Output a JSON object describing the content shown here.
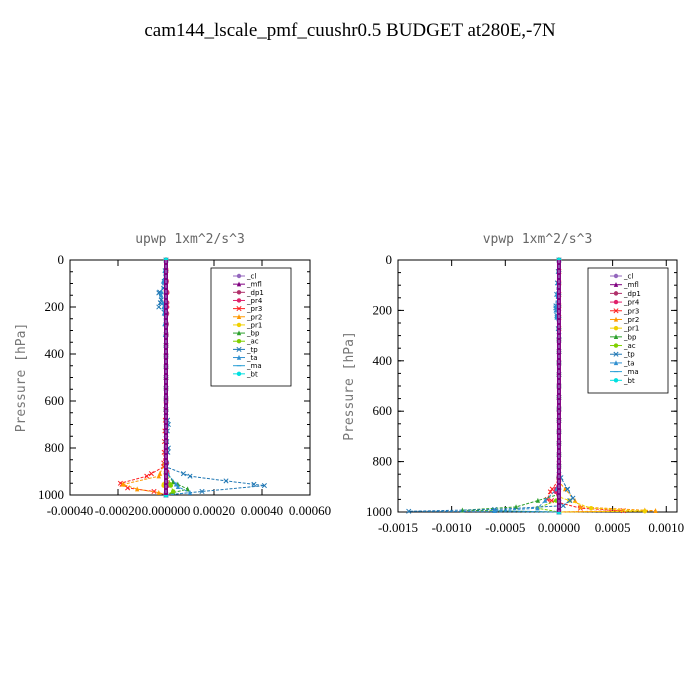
{
  "page": {
    "title": "cam144_lscale_pmf_cuushr0.5  BUDGET at280E,-7N"
  },
  "chart_data": [
    {
      "type": "line",
      "title": "upwp   1xm^2/s^3",
      "ylabel": "Pressure [hPa]",
      "xlabel": "",
      "xlim": [
        -0.0004,
        0.0006
      ],
      "ylim": [
        1000,
        0
      ],
      "xticks": [
        "-0.00040",
        "-0.00020",
        "0.000000",
        "0.00020",
        "0.00040",
        "0.00060"
      ],
      "xtick_values": [
        -0.0004,
        -0.0002,
        0,
        0.0002,
        0.0004,
        0.0006
      ],
      "yticks": [
        "0",
        "200",
        "400",
        "600",
        "800",
        "1000"
      ],
      "ytick_values": [
        0,
        200,
        400,
        600,
        800,
        1000
      ],
      "legend_position": "top-right",
      "series": [
        {
          "name": "_cl",
          "color": "#9467bd",
          "marker": "circle",
          "values": [
            [
              0,
              0
            ],
            [
              0,
              200
            ],
            [
              0,
              400
            ],
            [
              0,
              600
            ],
            [
              0,
              800
            ],
            [
              0,
              1000
            ]
          ]
        },
        {
          "name": "_mfl",
          "color": "#800080",
          "marker": "triangle",
          "values": [
            [
              0,
              0
            ],
            [
              0,
              200
            ],
            [
              0,
              400
            ],
            [
              0,
              600
            ],
            [
              0,
              800
            ],
            [
              0,
              1000
            ]
          ]
        },
        {
          "name": "_dp1",
          "color": "#b0306a",
          "marker": "circle",
          "values": [
            [
              0,
              0
            ],
            [
              0,
              200
            ],
            [
              0,
              400
            ],
            [
              0,
              600
            ],
            [
              0,
              800
            ],
            [
              0,
              1000
            ]
          ]
        },
        {
          "name": "_pr4",
          "color": "#e0206a",
          "marker": "circle",
          "values": [
            [
              0,
              0
            ],
            [
              5e-06,
              140
            ],
            [
              5e-06,
              200
            ],
            [
              0,
              400
            ],
            [
              0,
              700
            ],
            [
              5e-06,
              900
            ],
            [
              1e-05,
              960
            ],
            [
              0,
              1000
            ]
          ]
        },
        {
          "name": "_pr3",
          "color": "#ff2020",
          "marker": "x",
          "values": [
            [
              0,
              0
            ],
            [
              0,
              600
            ],
            [
              -1e-05,
              880
            ],
            [
              -8e-05,
              920
            ],
            [
              -0.00019,
              950
            ],
            [
              -0.00016,
              970
            ],
            [
              -5e-05,
              985
            ],
            [
              0,
              1000
            ]
          ]
        },
        {
          "name": "_pr2",
          "color": "#ff9900",
          "marker": "triangle",
          "values": [
            [
              0,
              0
            ],
            [
              0,
              850
            ],
            [
              -3e-05,
              920
            ],
            [
              -0.00018,
              955
            ],
            [
              -0.00012,
              975
            ],
            [
              -3e-05,
              990
            ],
            [
              0,
              1000
            ]
          ]
        },
        {
          "name": "_pr1",
          "color": "#f0d000",
          "marker": "circle",
          "values": [
            [
              0,
              0
            ],
            [
              0,
              900
            ],
            [
              -1e-05,
              960
            ],
            [
              0,
              1000
            ]
          ]
        },
        {
          "name": "_bp",
          "color": "#2ca02c",
          "marker": "triangle",
          "values": [
            [
              0,
              0
            ],
            [
              0,
              900
            ],
            [
              3e-05,
              945
            ],
            [
              9e-05,
              975
            ],
            [
              3e-05,
              990
            ],
            [
              0,
              1000
            ]
          ]
        },
        {
          "name": "_ac",
          "color": "#7fd000",
          "marker": "circle",
          "values": [
            [
              0,
              0
            ],
            [
              0,
              900
            ],
            [
              2e-05,
              960
            ],
            [
              3e-05,
              985
            ],
            [
              0,
              1000
            ]
          ]
        },
        {
          "name": "_tp",
          "color": "#1f77b4",
          "marker": "x",
          "values": [
            [
              0,
              0
            ],
            [
              -1e-05,
              120
            ],
            [
              -3e-05,
              140
            ],
            [
              -2e-05,
              170
            ],
            [
              -3e-05,
              200
            ],
            [
              0,
              230
            ],
            [
              0,
              650
            ],
            [
              1e-05,
              700
            ],
            [
              0,
              760
            ],
            [
              1e-05,
              800
            ],
            [
              0,
              880
            ],
            [
              0.0001,
              920
            ],
            [
              0.00025,
              940
            ],
            [
              0.00041,
              960
            ],
            [
              0.00015,
              985
            ],
            [
              0,
              1000
            ]
          ]
        },
        {
          "name": "_ta",
          "color": "#3090d0",
          "marker": "triangle",
          "values": [
            [
              0,
              0
            ],
            [
              -2e-05,
              150
            ],
            [
              -1e-05,
              200
            ],
            [
              0,
              400
            ],
            [
              0,
              900
            ],
            [
              5e-05,
              965
            ],
            [
              0.0001,
              990
            ],
            [
              0,
              1000
            ]
          ]
        },
        {
          "name": "_ma",
          "color": "#2a9fd6",
          "marker": "dash",
          "values": [
            [
              0,
              0
            ],
            [
              0,
              1000
            ]
          ]
        },
        {
          "name": "_bt",
          "color": "#00e0e0",
          "marker": "circle",
          "values": [
            [
              0,
              0
            ],
            [
              0,
              1000
            ]
          ]
        }
      ]
    },
    {
      "type": "line",
      "title": "vpwp   1xm^2/s^3",
      "ylabel": "Pressure [hPa]",
      "xlabel": "",
      "xlim": [
        -0.0015,
        0.0011
      ],
      "ylim": [
        1000,
        0
      ],
      "xticks": [
        "-0.0015",
        "-0.0010",
        "-0.0005",
        "0.00000",
        "0.0005",
        "0.0010"
      ],
      "xtick_values": [
        -0.0015,
        -0.001,
        -0.0005,
        0,
        0.0005,
        0.001
      ],
      "yticks": [
        "0",
        "200",
        "400",
        "600",
        "800",
        "1000"
      ],
      "ytick_values": [
        0,
        200,
        400,
        600,
        800,
        1000
      ],
      "legend_position": "top-right",
      "series": [
        {
          "name": "_cl",
          "color": "#9467bd",
          "marker": "circle",
          "values": [
            [
              0,
              0
            ],
            [
              0,
              200
            ],
            [
              0,
              400
            ],
            [
              0,
              600
            ],
            [
              0,
              800
            ],
            [
              0,
              1000
            ]
          ]
        },
        {
          "name": "_mfl",
          "color": "#800080",
          "marker": "triangle",
          "values": [
            [
              0,
              0
            ],
            [
              0,
              200
            ],
            [
              0,
              400
            ],
            [
              0,
              600
            ],
            [
              0,
              800
            ],
            [
              0,
              1000
            ]
          ]
        },
        {
          "name": "_dp1",
          "color": "#b0306a",
          "marker": "circle",
          "values": [
            [
              0,
              0
            ],
            [
              0,
              200
            ],
            [
              0,
              400
            ],
            [
              0,
              600
            ],
            [
              0,
              800
            ],
            [
              0,
              1000
            ]
          ]
        },
        {
          "name": "_pr4",
          "color": "#e0206a",
          "marker": "circle",
          "values": [
            [
              0,
              0
            ],
            [
              0,
              850
            ],
            [
              -3e-05,
              920
            ],
            [
              0,
              960
            ],
            [
              0,
              1000
            ]
          ]
        },
        {
          "name": "_pr3",
          "color": "#ff2020",
          "marker": "x",
          "values": [
            [
              0,
              0
            ],
            [
              0,
              870
            ],
            [
              -8e-05,
              920
            ],
            [
              -0.00011,
              950
            ],
            [
              0.0002,
              985
            ],
            [
              0.0006,
              995
            ],
            [
              0,
              1000
            ]
          ]
        },
        {
          "name": "_pr2",
          "color": "#ff9900",
          "marker": "triangle",
          "values": [
            [
              0,
              0
            ],
            [
              0,
              880
            ],
            [
              0.0002,
              980
            ],
            [
              0.0008,
              993
            ],
            [
              0.0009,
              995
            ],
            [
              0,
              1000
            ]
          ]
        },
        {
          "name": "_pr1",
          "color": "#f0d000",
          "marker": "circle",
          "values": [
            [
              0,
              0
            ],
            [
              0,
              940
            ],
            [
              0.0003,
              985
            ],
            [
              0.0008,
              997
            ],
            [
              0,
              1000
            ]
          ]
        },
        {
          "name": "_bp",
          "color": "#2ca02c",
          "marker": "triangle",
          "values": [
            [
              0,
              0
            ],
            [
              0,
              930
            ],
            [
              -0.0004,
              980
            ],
            [
              -0.0009,
              993
            ],
            [
              0,
              1000
            ]
          ]
        },
        {
          "name": "_ac",
          "color": "#7fd000",
          "marker": "circle",
          "values": [
            [
              0,
              0
            ],
            [
              0,
              950
            ],
            [
              -0.0002,
              985
            ],
            [
              0,
              1000
            ]
          ]
        },
        {
          "name": "_tp",
          "color": "#1f77b4",
          "marker": "x",
          "values": [
            [
              0,
              0
            ],
            [
              -3e-05,
              190
            ],
            [
              -2e-05,
              220
            ],
            [
              0,
              300
            ],
            [
              0,
              850
            ],
            [
              8e-05,
              910
            ],
            [
              0.00013,
              945
            ],
            [
              4e-05,
              975
            ],
            [
              -0.0006,
              990
            ],
            [
              -0.0014,
              997
            ],
            [
              0,
              1000
            ]
          ]
        },
        {
          "name": "_ta",
          "color": "#3090d0",
          "marker": "triangle",
          "values": [
            [
              0,
              0
            ],
            [
              -3e-05,
              200
            ],
            [
              0,
              300
            ],
            [
              0,
              900
            ],
            [
              -0.0002,
              985
            ],
            [
              -0.0006,
              995
            ],
            [
              0,
              1000
            ]
          ]
        },
        {
          "name": "_ma",
          "color": "#2a9fd6",
          "marker": "dash",
          "values": [
            [
              0,
              0
            ],
            [
              0,
              1000
            ]
          ]
        },
        {
          "name": "_bt",
          "color": "#00e0e0",
          "marker": "circle",
          "values": [
            [
              0,
              0
            ],
            [
              0,
              1000
            ]
          ]
        }
      ]
    }
  ]
}
